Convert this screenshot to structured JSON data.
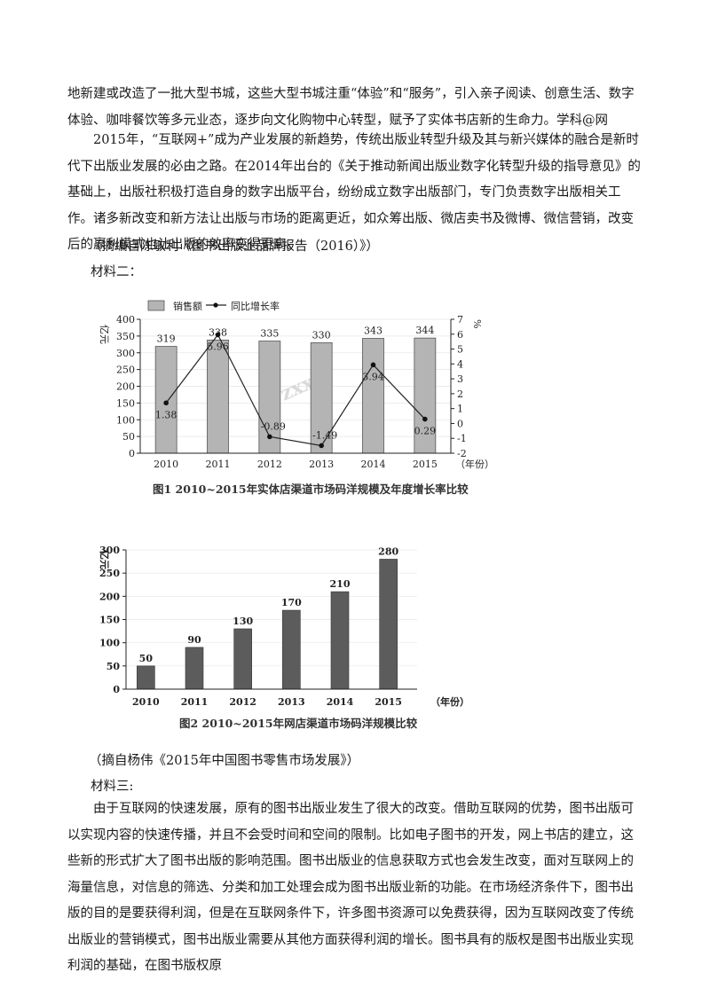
{
  "material1": {
    "para1": "地新建或改造了一批大型书城，这些大型书城注重“体验”和“服务”，引入亲子阅读、创意生活、数字体验、咖啡餐饮等多元业态，逐步向文化购物中心转型，赋予了实体书店新的生命力。学科@网",
    "para2": "2015年，“互联网+”成为产业发展的新趋势，传统出版业转型升级及其与新兴媒体的融合是新时代下出版业发展的必由之路。在2014年出台的《关于推动新闻出版业数字化转型升级的指导意见》的基础上，出版社积极打造自身的数字出版平台，纷纷成立数字出版部门，专门负责数字出版相关工作。诸多新改变和新方法让出版与市场的距离更近，如众筹出版、微店卖书及微博、微信营销，改变后的赢利模式也让出版的效率变得更高。",
    "source": "（摘编自陈敏利《图书出版业品牌报告（2016）》）"
  },
  "material2": {
    "label": "材料二：",
    "source": "（摘自杨伟《2015年中国图书零售市场发展》）"
  },
  "material3": {
    "label": "材料三:",
    "para": "由于互联网的快速发展，原有的图书出版业发生了很大的改变。借助互联网的优势，图书出版可以实现内容的快速传播，并且不会受时间和空间的限制。比如电子图书的开发，网上书店的建立，这些新的形式扩大了图书出版的影响范围。图书出版业的信息获取方式也会发生改变，面对互联网上的海量信息，对信息的筛选、分类和加工处理会成为图书出版业新的功能。在市场经济条件下，图书出版的目的是要获得利润，但是在互联网条件下，许多图书资源可以免费获得，因为互联网改变了传统出版业的营销模式，图书出版业需要从其他方面获得利润的增长。图书具有的版权是图书出版业实现利润的基础，在图书版权原"
  },
  "watermark": "zxxk",
  "chart_data": [
    {
      "type": "bar",
      "title": "图1 2010~2015年实体店渠道市场码洋规模及年度增长率比较",
      "categories": [
        "2010",
        "2011",
        "2012",
        "2013",
        "2014",
        "2015"
      ],
      "xlabel": "（年份）",
      "ylabel": "亿元",
      "y2label": "%",
      "ylim": [
        0,
        400
      ],
      "y2lim": [
        -2,
        7
      ],
      "yticks": [
        "0",
        "50",
        "100",
        "150",
        "200",
        "250",
        "300",
        "350",
        "400"
      ],
      "y2ticks": [
        "-2",
        "-1",
        "0",
        "1",
        "2",
        "3",
        "4",
        "5",
        "6",
        "7"
      ],
      "legend": [
        "销售额",
        "同比增长率"
      ],
      "legend_position": "top",
      "series": [
        {
          "name": "销售额",
          "type": "bar",
          "values": [
            319,
            338,
            335,
            330,
            343,
            344
          ]
        },
        {
          "name": "同比增长率",
          "type": "line",
          "axis": "right",
          "values": [
            1.38,
            5.96,
            -0.89,
            -1.49,
            3.94,
            0.29
          ]
        }
      ]
    },
    {
      "type": "bar",
      "title": "图2 2010~2015年网店渠道市场码洋规模比较",
      "categories": [
        "2010",
        "2011",
        "2012",
        "2013",
        "2014",
        "2015"
      ],
      "xlabel": "（年份）",
      "ylabel": "亿元",
      "ylim": [
        0,
        300
      ],
      "yticks": [
        "0",
        "50",
        "100",
        "150",
        "200",
        "250",
        "300"
      ],
      "series": [
        {
          "name": "",
          "values": [
            50,
            90,
            130,
            170,
            210,
            280
          ]
        }
      ]
    }
  ]
}
